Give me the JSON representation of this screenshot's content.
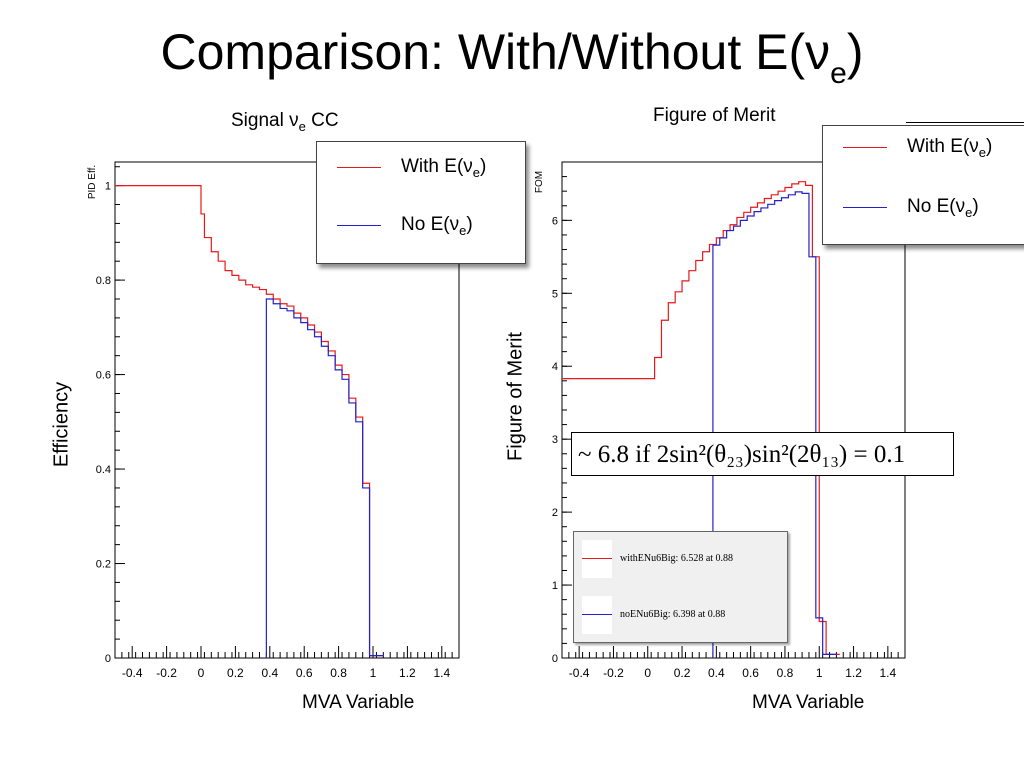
{
  "slide": {
    "title": "Comparison: With/Without E(ν",
    "title_sub": "e",
    "title_close": ")",
    "xlabel_left": "MVA Variable",
    "xlabel_right": "MVA Variable",
    "ylabel_left": "Efficiency",
    "ylabel_right": "Figure of Merit"
  },
  "left_caption": {
    "pre": "Signal ν",
    "sub": "e",
    "post": " CC"
  },
  "right_caption": "Figure of Merit",
  "legend_left": [
    {
      "pre": "With E(ν",
      "sub": "e",
      "post": ")",
      "color": "#e8191b"
    },
    {
      "pre": "No E(ν",
      "sub": "e",
      "post": ")",
      "color": "#2222cc"
    }
  ],
  "legend_right": [
    {
      "pre": "With E(ν",
      "sub": "e",
      "post": ")",
      "color": "#e8191b"
    },
    {
      "pre": "No E(ν",
      "sub": "e",
      "post": ")",
      "color": "#2222cc"
    }
  ],
  "formula": "~ 6.8 if 2sin²(θ₂₃)sin²(2θ₁₃) = 0.1",
  "stats_box": [
    {
      "text": "withENu6Big: 6.528 at 0.88",
      "color": "#e8191b"
    },
    {
      "text": "noENu6Big: 6.398 at 0.88",
      "color": "#2222cc"
    }
  ],
  "chart_data": [
    {
      "type": "line",
      "subtype": "step-histogram",
      "title": "Signal νe CC",
      "xlabel": "MVA Variable",
      "ylabel": "PID Eff.",
      "xlim": [
        -0.5,
        1.5
      ],
      "ylim": [
        0,
        1.05
      ],
      "xticks": [
        "-0.4",
        "-0.2",
        "0",
        "0.2",
        "0.4",
        "0.6",
        "0.8",
        "1",
        "1.2",
        "1.4"
      ],
      "yticks": [
        "0",
        "0.2",
        "0.4",
        "0.6",
        "0.8",
        "1"
      ],
      "series": [
        {
          "name": "With E(νe)",
          "color": "#e8191b",
          "x": [
            -0.5,
            0.0,
            0.02,
            0.06,
            0.1,
            0.14,
            0.18,
            0.22,
            0.26,
            0.3,
            0.34,
            0.38,
            0.42,
            0.46,
            0.5,
            0.54,
            0.58,
            0.62,
            0.66,
            0.7,
            0.74,
            0.78,
            0.82,
            0.86,
            0.9,
            0.94,
            0.98,
            1.02
          ],
          "y": [
            1.0,
            0.94,
            0.89,
            0.86,
            0.84,
            0.82,
            0.81,
            0.8,
            0.79,
            0.785,
            0.78,
            0.77,
            0.76,
            0.75,
            0.745,
            0.73,
            0.72,
            0.705,
            0.69,
            0.67,
            0.65,
            0.62,
            0.6,
            0.55,
            0.51,
            0.37,
            0.005,
            0.005
          ]
        },
        {
          "name": "No E(νe)",
          "color": "#2222cc",
          "x": [
            0.38,
            0.42,
            0.46,
            0.5,
            0.54,
            0.58,
            0.62,
            0.66,
            0.7,
            0.74,
            0.78,
            0.82,
            0.86,
            0.9,
            0.94,
            0.98,
            1.02
          ],
          "y": [
            0.76,
            0.75,
            0.74,
            0.735,
            0.72,
            0.71,
            0.695,
            0.68,
            0.66,
            0.64,
            0.61,
            0.59,
            0.54,
            0.5,
            0.36,
            0.005,
            0.005
          ]
        }
      ]
    },
    {
      "type": "line",
      "subtype": "step-histogram",
      "title": "Figure of Merit",
      "xlabel": "MVA Variable",
      "ylabel": "FOM",
      "xlim": [
        -0.5,
        1.5
      ],
      "ylim": [
        0,
        6.8
      ],
      "xticks": [
        "-0.4",
        "-0.2",
        "0",
        "0.2",
        "0.4",
        "0.6",
        "0.8",
        "1",
        "1.2",
        "1.4"
      ],
      "yticks": [
        "0",
        "1",
        "2",
        "3",
        "4",
        "5",
        "6"
      ],
      "series": [
        {
          "name": "withENu6Big",
          "color": "#e8191b",
          "x": [
            -0.5,
            0.04,
            0.08,
            0.12,
            0.16,
            0.2,
            0.24,
            0.28,
            0.32,
            0.36,
            0.4,
            0.44,
            0.48,
            0.52,
            0.56,
            0.6,
            0.64,
            0.68,
            0.72,
            0.76,
            0.8,
            0.84,
            0.88,
            0.92,
            0.96,
            1.0,
            1.04,
            1.08
          ],
          "y": [
            3.83,
            4.12,
            4.63,
            4.87,
            5.02,
            5.17,
            5.31,
            5.45,
            5.57,
            5.67,
            5.76,
            5.86,
            5.94,
            6.04,
            6.11,
            6.18,
            6.24,
            6.3,
            6.35,
            6.4,
            6.45,
            6.5,
            6.53,
            6.48,
            5.5,
            0.5,
            0.05,
            0.05
          ]
        },
        {
          "name": "noENu6Big",
          "color": "#2222cc",
          "x": [
            0.38,
            0.42,
            0.46,
            0.5,
            0.54,
            0.58,
            0.62,
            0.66,
            0.7,
            0.74,
            0.78,
            0.82,
            0.86,
            0.9,
            0.94,
            0.98,
            1.02,
            1.06
          ],
          "y": [
            5.66,
            5.76,
            5.86,
            5.92,
            6.0,
            6.06,
            6.12,
            6.17,
            6.22,
            6.27,
            6.31,
            6.35,
            6.39,
            6.37,
            5.5,
            0.55,
            0.05,
            0.05
          ]
        }
      ]
    }
  ]
}
